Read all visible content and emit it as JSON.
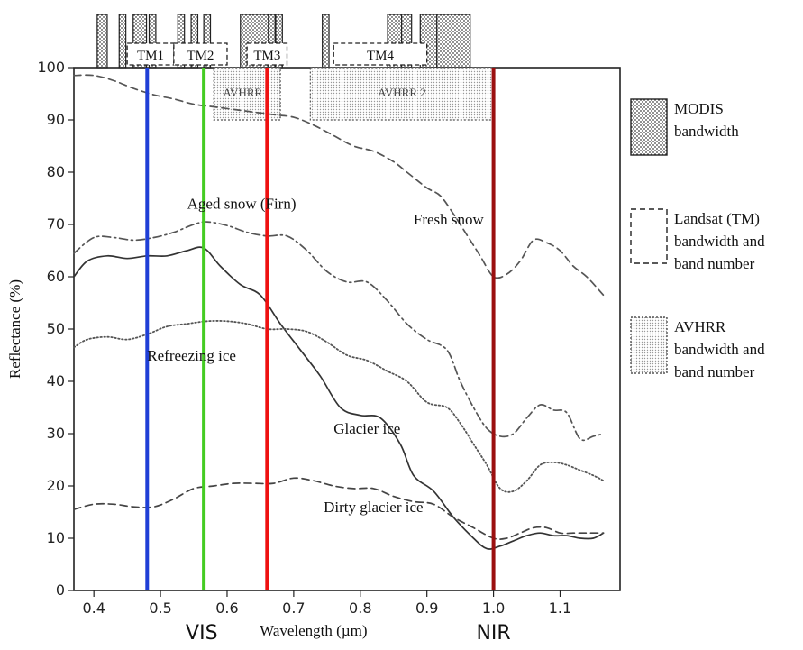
{
  "chart_data": {
    "type": "line",
    "title": "",
    "xlabel": "Wavelength (µm)",
    "ylabel": "Reflectance (%)",
    "xlim": [
      0.37,
      1.19
    ],
    "ylim": [
      0,
      100
    ],
    "x_ticks": [
      0.4,
      0.5,
      0.6,
      0.7,
      0.8,
      0.9,
      1.0,
      1.1
    ],
    "x_tick_labels": [
      "0.4",
      "0.5",
      "0.6",
      "0.7",
      "0.8",
      "0.9",
      "1.0",
      "1.1"
    ],
    "y_ticks": [
      0,
      10,
      20,
      30,
      40,
      50,
      60,
      70,
      80,
      90,
      100
    ],
    "y_tick_labels": [
      "0",
      "10",
      "20",
      "30",
      "40",
      "50",
      "60",
      "70",
      "80",
      "90",
      "100"
    ],
    "grid": false,
    "legend_position": "right",
    "region_labels": [
      {
        "text": "VIS",
        "x": 0.57
      },
      {
        "text": "NIR",
        "x": 1.0
      }
    ],
    "series": [
      {
        "name": "Fresh snow",
        "style": "dashed",
        "color": "#555555",
        "label_at": [
          0.88,
          70
        ],
        "x": [
          0.37,
          0.4,
          0.43,
          0.46,
          0.49,
          0.52,
          0.55,
          0.58,
          0.61,
          0.64,
          0.67,
          0.7,
          0.73,
          0.76,
          0.79,
          0.82,
          0.85,
          0.87,
          0.9,
          0.92,
          0.94,
          0.96,
          0.98,
          1.0,
          1.02,
          1.04,
          1.06,
          1.08,
          1.1,
          1.12,
          1.14,
          1.165
        ],
        "y": [
          98.5,
          98.5,
          97.5,
          96,
          94.8,
          94,
          93,
          92.5,
          92,
          91.5,
          91,
          90.5,
          89,
          87,
          85,
          84,
          82,
          80,
          77,
          75.5,
          72,
          68,
          64,
          60,
          60.5,
          63,
          67,
          66.5,
          65,
          62,
          60,
          56.5
        ]
      },
      {
        "name": "Aged snow (Firn)",
        "style": "dash-dot",
        "color": "#555555",
        "label_at": [
          0.54,
          73
        ],
        "x": [
          0.37,
          0.4,
          0.43,
          0.46,
          0.49,
          0.52,
          0.55,
          0.57,
          0.6,
          0.63,
          0.66,
          0.69,
          0.72,
          0.75,
          0.78,
          0.81,
          0.84,
          0.87,
          0.9,
          0.93,
          0.95,
          0.97,
          0.99,
          1.01,
          1.03,
          1.05,
          1.07,
          1.09,
          1.11,
          1.13,
          1.15,
          1.165
        ],
        "y": [
          64.5,
          67.5,
          67.5,
          67,
          67.5,
          68.5,
          70,
          70.5,
          69.8,
          68.5,
          67.8,
          67.8,
          65,
          61,
          59,
          59,
          55.5,
          51,
          48,
          46,
          40,
          35,
          31,
          29.5,
          30,
          33,
          35.5,
          34.5,
          34,
          29,
          29.5,
          30
        ]
      },
      {
        "name": "Glacier ice",
        "style": "solid",
        "color": "#333333",
        "label_at": [
          0.76,
          30
        ],
        "x": [
          0.37,
          0.39,
          0.42,
          0.45,
          0.48,
          0.51,
          0.54,
          0.565,
          0.59,
          0.62,
          0.65,
          0.68,
          0.71,
          0.74,
          0.77,
          0.8,
          0.83,
          0.86,
          0.88,
          0.91,
          0.94,
          0.97,
          0.99,
          1.01,
          1.03,
          1.05,
          1.07,
          1.09,
          1.11,
          1.13,
          1.15,
          1.165
        ],
        "y": [
          60,
          63,
          64,
          63.5,
          64,
          64,
          65,
          65.5,
          62,
          58.5,
          56.5,
          51,
          46,
          41,
          35,
          33.5,
          33,
          28,
          22,
          19,
          14,
          10,
          8,
          8.5,
          9.5,
          10.5,
          11,
          10.5,
          10.5,
          10,
          10,
          11
        ]
      },
      {
        "name": "Refreezing ice",
        "style": "dotted",
        "color": "#555555",
        "label_at": [
          0.48,
          44
        ],
        "x": [
          0.37,
          0.39,
          0.42,
          0.45,
          0.48,
          0.51,
          0.54,
          0.57,
          0.6,
          0.63,
          0.66,
          0.69,
          0.72,
          0.75,
          0.78,
          0.81,
          0.84,
          0.87,
          0.9,
          0.93,
          0.95,
          0.97,
          0.99,
          1.01,
          1.03,
          1.05,
          1.07,
          1.09,
          1.11,
          1.13,
          1.15,
          1.165
        ],
        "y": [
          46.5,
          48,
          48.5,
          48,
          49,
          50.5,
          51,
          51.5,
          51.5,
          51,
          50,
          50,
          49.5,
          47.5,
          45,
          44,
          42,
          40,
          36,
          35,
          32,
          28,
          24,
          19.5,
          19,
          21,
          24,
          24.5,
          24,
          23,
          22,
          21
        ]
      },
      {
        "name": "Dirty glacier ice",
        "style": "dashed",
        "color": "#444444",
        "label_at": [
          0.745,
          15
        ],
        "x": [
          0.37,
          0.4,
          0.43,
          0.46,
          0.49,
          0.52,
          0.55,
          0.58,
          0.61,
          0.64,
          0.67,
          0.7,
          0.73,
          0.76,
          0.79,
          0.82,
          0.85,
          0.88,
          0.91,
          0.94,
          0.97,
          1.0,
          1.02,
          1.04,
          1.06,
          1.08,
          1.1,
          1.12,
          1.14,
          1.165
        ],
        "y": [
          15.5,
          16.5,
          16.5,
          16,
          16,
          17.5,
          19.5,
          20,
          20.5,
          20.5,
          20.5,
          21.5,
          21,
          20,
          19.5,
          19.5,
          18,
          17,
          16.5,
          14,
          12,
          10,
          10,
          11,
          12,
          12,
          11,
          11,
          11,
          11
        ]
      }
    ],
    "vertical_lines": [
      {
        "x": 0.48,
        "color": "#1f3fd6"
      },
      {
        "x": 0.565,
        "color": "#44cc22"
      },
      {
        "x": 0.66,
        "color": "#ee1111"
      },
      {
        "x": 1.0,
        "color": "#9b1010"
      }
    ],
    "avhrr_bands": [
      {
        "label": "AVHRR 1",
        "x0": 0.58,
        "x1": 0.68,
        "y_top": 100,
        "y_bottom": 90
      },
      {
        "label": "AVHRR 2",
        "x0": 0.725,
        "x1": 1.0,
        "y_top": 100,
        "y_bottom": 90
      }
    ],
    "tm_bands": [
      {
        "label": "TM1",
        "x0": 0.45,
        "x1": 0.52
      },
      {
        "label": "TM2",
        "x0": 0.52,
        "x1": 0.6
      },
      {
        "label": "TM3",
        "x0": 0.63,
        "x1": 0.69
      },
      {
        "label": "TM4",
        "x0": 0.76,
        "x1": 0.9
      }
    ],
    "modis_bands": [
      {
        "x0": 0.405,
        "x1": 0.42
      },
      {
        "x0": 0.438,
        "x1": 0.448
      },
      {
        "x0": 0.459,
        "x1": 0.479
      },
      {
        "x0": 0.483,
        "x1": 0.493
      },
      {
        "x0": 0.526,
        "x1": 0.536
      },
      {
        "x0": 0.546,
        "x1": 0.556
      },
      {
        "x0": 0.565,
        "x1": 0.575
      },
      {
        "x0": 0.62,
        "x1": 0.67
      },
      {
        "x0": 0.662,
        "x1": 0.672
      },
      {
        "x0": 0.673,
        "x1": 0.683
      },
      {
        "x0": 0.743,
        "x1": 0.753
      },
      {
        "x0": 0.841,
        "x1": 0.876
      },
      {
        "x0": 0.862,
        "x1": 0.877
      },
      {
        "x0": 0.89,
        "x1": 0.92
      },
      {
        "x0": 0.915,
        "x1": 0.935
      },
      {
        "x0": 0.931,
        "x1": 0.941
      },
      {
        "x0": 0.915,
        "x1": 0.965
      }
    ],
    "legend": [
      {
        "kind": "modis",
        "lines": [
          "MODIS",
          "bandwidth"
        ]
      },
      {
        "kind": "landsat",
        "lines": [
          "Landsat (TM)",
          "bandwidth and",
          "band number"
        ]
      },
      {
        "kind": "avhrr",
        "lines": [
          "AVHRR",
          "bandwidth and",
          "band number"
        ]
      }
    ]
  }
}
